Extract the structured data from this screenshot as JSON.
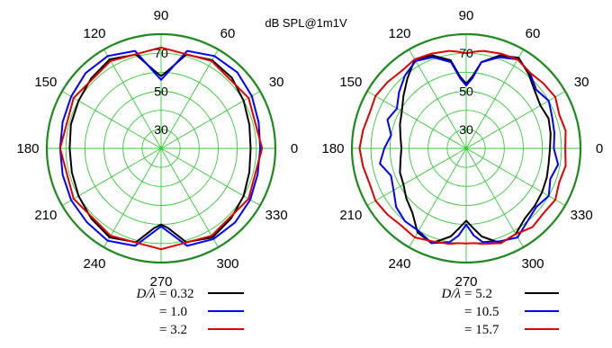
{
  "title": "dB SPL@1m1V",
  "chart_data": [
    {
      "type": "polar-line",
      "r_ticks": [
        "30",
        "50",
        "70"
      ],
      "r_min": 20,
      "r_max": 80,
      "angle_ticks": [
        "0",
        "30",
        "60",
        "90",
        "120",
        "150",
        "180",
        "210",
        "240",
        "270",
        "300",
        "330"
      ],
      "legend_prefix": "D/λ",
      "series": [
        {
          "name": "0.32",
          "legend_text": "= 0.32",
          "color": "#000000",
          "values": [
            [
              0,
              67
            ],
            [
              15,
              68
            ],
            [
              30,
              70
            ],
            [
              45,
              72.5
            ],
            [
              60,
              73.5
            ],
            [
              75,
              71
            ],
            [
              85,
              61
            ],
            [
              90,
              58
            ],
            [
              95,
              61
            ],
            [
              105,
              71
            ],
            [
              120,
              74
            ],
            [
              135,
              72
            ],
            [
              150,
              70
            ],
            [
              165,
              69
            ],
            [
              180,
              68
            ],
            [
              195,
              68.5
            ],
            [
              210,
              70
            ],
            [
              225,
              72
            ],
            [
              240,
              74
            ],
            [
              255,
              71
            ],
            [
              265,
              62
            ],
            [
              270,
              60
            ],
            [
              275,
              62
            ],
            [
              285,
              71
            ],
            [
              300,
              74
            ],
            [
              315,
              72
            ],
            [
              330,
              70
            ],
            [
              345,
              68
            ],
            [
              360,
              67
            ]
          ]
        },
        {
          "name": "1.0",
          "legend_text": "= 1.0",
          "color": "#0000ff",
          "values": [
            [
              0,
              72
            ],
            [
              15,
              73
            ],
            [
              30,
              75
            ],
            [
              45,
              76.5
            ],
            [
              60,
              76
            ],
            [
              75,
              73
            ],
            [
              85,
              60
            ],
            [
              90,
              56
            ],
            [
              95,
              60
            ],
            [
              105,
              73
            ],
            [
              120,
              76
            ],
            [
              135,
              76
            ],
            [
              150,
              74.5
            ],
            [
              165,
              73.5
            ],
            [
              180,
              73
            ],
            [
              195,
              73.5
            ],
            [
              210,
              74.5
            ],
            [
              225,
              75
            ],
            [
              240,
              76
            ],
            [
              255,
              73
            ],
            [
              265,
              64
            ],
            [
              270,
              61
            ],
            [
              275,
              64
            ],
            [
              285,
              73
            ],
            [
              300,
              75
            ],
            [
              315,
              75
            ],
            [
              330,
              74
            ],
            [
              345,
              72.5
            ],
            [
              360,
              72
            ]
          ]
        },
        {
          "name": "3.2",
          "legend_text": "= 3.2",
          "color": "#e00000",
          "values": [
            [
              0,
              73
            ],
            [
              30,
              73
            ],
            [
              60,
              73
            ],
            [
              90,
              73
            ],
            [
              120,
              73
            ],
            [
              150,
              73
            ],
            [
              180,
              73
            ],
            [
              210,
              73
            ],
            [
              240,
              73
            ],
            [
              270,
              73
            ],
            [
              300,
              73
            ],
            [
              330,
              73
            ],
            [
              360,
              73
            ]
          ]
        }
      ]
    },
    {
      "type": "polar-line",
      "r_ticks": [
        "30",
        "50",
        "70"
      ],
      "r_min": 20,
      "r_max": 80,
      "angle_ticks": [
        "0",
        "30",
        "60",
        "90",
        "120",
        "150",
        "180",
        "210",
        "240",
        "270",
        "300",
        "330"
      ],
      "legend_prefix": "D/λ",
      "series": [
        {
          "name": "5.2",
          "legend_text": "= 5.2",
          "color": "#000000",
          "values": [
            [
              0,
              64
            ],
            [
              10,
              65
            ],
            [
              20,
              66
            ],
            [
              30,
              65
            ],
            [
              40,
              67
            ],
            [
              50,
              71
            ],
            [
              60,
              75
            ],
            [
              70,
              72
            ],
            [
              80,
              66
            ],
            [
              85,
              58
            ],
            [
              90,
              54
            ],
            [
              95,
              58
            ],
            [
              100,
              67
            ],
            [
              110,
              72
            ],
            [
              120,
              74
            ],
            [
              130,
              68
            ],
            [
              140,
              63
            ],
            [
              150,
              59
            ],
            [
              160,
              57
            ],
            [
              170,
              55
            ],
            [
              180,
              54
            ],
            [
              190,
              55
            ],
            [
              200,
              57
            ],
            [
              210,
              58
            ],
            [
              220,
              61
            ],
            [
              230,
              64
            ],
            [
              240,
              71
            ],
            [
              250,
              73
            ],
            [
              260,
              67
            ],
            [
              265,
              62
            ],
            [
              270,
              58
            ],
            [
              275,
              62
            ],
            [
              280,
              67
            ],
            [
              290,
              73
            ],
            [
              300,
              72
            ],
            [
              310,
              68
            ],
            [
              320,
              67
            ],
            [
              330,
              66
            ],
            [
              340,
              65
            ],
            [
              350,
              64
            ],
            [
              360,
              64
            ]
          ]
        },
        {
          "name": "10.5",
          "legend_text": "= 10.5",
          "color": "#0000ff",
          "values": [
            [
              0,
              66
            ],
            [
              10,
              67
            ],
            [
              20,
              68
            ],
            [
              30,
              70
            ],
            [
              40,
              68
            ],
            [
              50,
              72
            ],
            [
              60,
              74
            ],
            [
              70,
              71
            ],
            [
              80,
              66
            ],
            [
              85,
              57
            ],
            [
              90,
              53
            ],
            [
              95,
              57
            ],
            [
              100,
              66
            ],
            [
              110,
              71
            ],
            [
              120,
              73
            ],
            [
              130,
              70
            ],
            [
              140,
              66
            ],
            [
              150,
              62
            ],
            [
              160,
              64
            ],
            [
              170,
              60
            ],
            [
              180,
              63
            ],
            [
              190,
              66
            ],
            [
              200,
              62
            ],
            [
              210,
              64
            ],
            [
              220,
              68
            ],
            [
              230,
              70
            ],
            [
              240,
              70
            ],
            [
              250,
              73
            ],
            [
              260,
              70
            ],
            [
              265,
              66
            ],
            [
              270,
              60
            ],
            [
              275,
              66
            ],
            [
              280,
              70
            ],
            [
              290,
              72
            ],
            [
              300,
              74
            ],
            [
              310,
              70
            ],
            [
              320,
              68
            ],
            [
              330,
              70
            ],
            [
              340,
              67
            ],
            [
              350,
              69
            ],
            [
              360,
              66
            ]
          ]
        },
        {
          "name": "15.7",
          "legend_text": "= 15.7",
          "color": "#e00000",
          "values": [
            [
              0,
              72
            ],
            [
              10,
              73
            ],
            [
              20,
              72
            ],
            [
              30,
              74
            ],
            [
              40,
              73
            ],
            [
              50,
              72
            ],
            [
              60,
              74
            ],
            [
              70,
              73
            ],
            [
              80,
              72
            ],
            [
              85,
              71
            ],
            [
              90,
              70
            ],
            [
              95,
              71
            ],
            [
              100,
              72
            ],
            [
              110,
              73
            ],
            [
              120,
              74
            ],
            [
              130,
              73
            ],
            [
              140,
              74
            ],
            [
              150,
              75
            ],
            [
              160,
              74
            ],
            [
              170,
              75
            ],
            [
              180,
              76
            ],
            [
              190,
              75
            ],
            [
              200,
              74
            ],
            [
              210,
              75
            ],
            [
              220,
              74
            ],
            [
              230,
              73
            ],
            [
              240,
              74
            ],
            [
              250,
              72
            ],
            [
              260,
              71
            ],
            [
              265,
              70
            ],
            [
              270,
              70
            ],
            [
              275,
              70
            ],
            [
              280,
              71
            ],
            [
              290,
              73
            ],
            [
              300,
              72
            ],
            [
              310,
              74
            ],
            [
              320,
              73
            ],
            [
              330,
              74
            ],
            [
              340,
              72
            ],
            [
              350,
              73
            ],
            [
              360,
              72
            ]
          ]
        }
      ]
    }
  ]
}
